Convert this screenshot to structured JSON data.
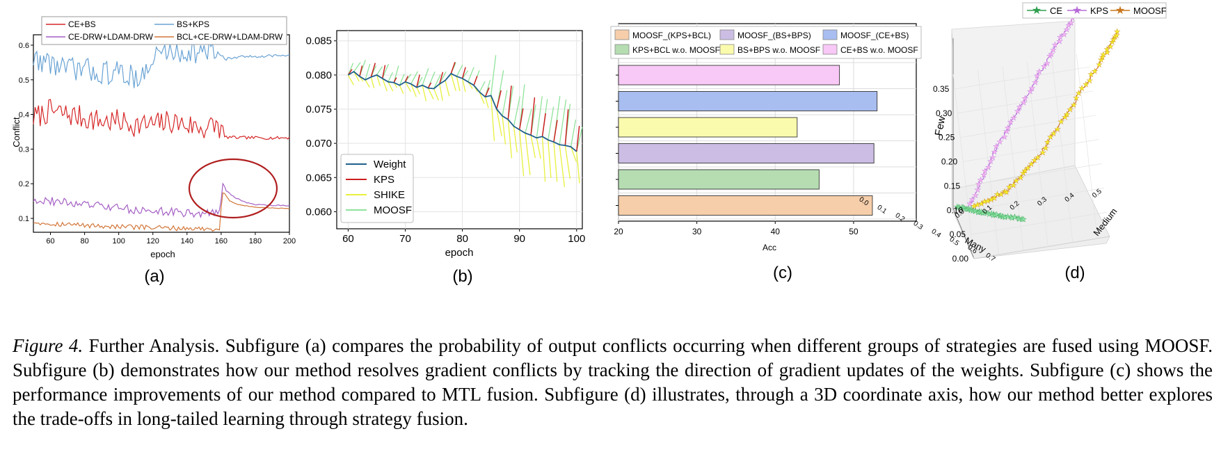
{
  "figure": {
    "caption_label": "Figure 4.",
    "caption_text": "Further Analysis. Subfigure (a) compares the probability of output conflicts occurring when different groups of strategies are fused using MOOSF. Subfigure (b) demonstrates how our method resolves gradient conflicts by tracking the direction of gradient updates of the weights. Subfigure (c) shows the performance improvements of our method compared to MTL fusion. Subfigure (d) illustrates, through a 3D coordinate axis, how our method better explores the trade-offs in long-tailed learning through strategy fusion.",
    "subfigure_labels": [
      "(a)",
      "(b)",
      "(c)",
      "(d)"
    ]
  },
  "chart_data": [
    {
      "id": "a",
      "type": "line",
      "xlabel": "epoch",
      "ylabel": "Conflict",
      "xlim": [
        50,
        200
      ],
      "ylim": [
        0.06,
        0.63
      ],
      "xticks": [
        60,
        80,
        100,
        120,
        140,
        160,
        180,
        200
      ],
      "yticks": [
        0.1,
        0.2,
        0.3,
        0.4,
        0.5,
        0.6
      ],
      "series": [
        {
          "name": "CE+BS",
          "color": "#d62728",
          "x": [
            50,
            60,
            70,
            80,
            90,
            100,
            110,
            120,
            130,
            140,
            150,
            158,
            162,
            170,
            180,
            190,
            200
          ],
          "y": [
            0.39,
            0.41,
            0.4,
            0.39,
            0.38,
            0.38,
            0.37,
            0.37,
            0.38,
            0.37,
            0.36,
            0.37,
            0.335,
            0.333,
            0.333,
            0.332,
            0.333
          ]
        },
        {
          "name": "BS+KPS",
          "color": "#6aa3d4",
          "x": [
            50,
            60,
            70,
            80,
            90,
            100,
            110,
            118,
            122,
            130,
            140,
            150,
            158,
            162,
            170,
            180,
            190,
            200
          ],
          "y": [
            0.56,
            0.55,
            0.53,
            0.53,
            0.52,
            0.52,
            0.51,
            0.52,
            0.58,
            0.58,
            0.58,
            0.58,
            0.58,
            0.56,
            0.565,
            0.568,
            0.57,
            0.57
          ]
        },
        {
          "name": "CE-DRW+LDAM-DRW",
          "color": "#a45fc4",
          "x": [
            50,
            60,
            70,
            80,
            90,
            100,
            110,
            120,
            130,
            140,
            150,
            159,
            161,
            163,
            168,
            175,
            180,
            190,
            200
          ],
          "y": [
            0.155,
            0.15,
            0.145,
            0.14,
            0.135,
            0.13,
            0.125,
            0.12,
            0.12,
            0.115,
            0.115,
            0.115,
            0.205,
            0.18,
            0.16,
            0.145,
            0.14,
            0.138,
            0.137
          ]
        },
        {
          "name": "BCL+CE-DRW+LDAM-DRW",
          "color": "#d2773a",
          "x": [
            50,
            60,
            70,
            80,
            90,
            100,
            110,
            120,
            130,
            140,
            150,
            159,
            161,
            165,
            170,
            180,
            190,
            200
          ],
          "y": [
            0.09,
            0.085,
            0.083,
            0.08,
            0.078,
            0.076,
            0.075,
            0.073,
            0.072,
            0.071,
            0.07,
            0.07,
            0.18,
            0.15,
            0.14,
            0.132,
            0.13,
            0.128
          ]
        }
      ],
      "annotation": "ellipse highlighting epochs 160-200"
    },
    {
      "id": "b",
      "type": "line",
      "xlabel": "epoch",
      "ylabel": "",
      "xlim": [
        58,
        101
      ],
      "ylim": [
        0.0575,
        0.0865
      ],
      "xticks": [
        60,
        70,
        80,
        90,
        100
      ],
      "yticks": [
        0.06,
        0.065,
        0.07,
        0.075,
        0.08,
        0.085
      ],
      "series": [
        {
          "name": "Weight",
          "color": "#1f5f8b",
          "x": [
            60,
            61,
            62,
            63,
            64,
            65,
            66,
            67,
            68,
            69,
            70,
            71,
            72,
            73,
            74,
            75,
            76,
            77,
            78,
            79,
            80,
            81,
            82,
            83,
            84,
            85,
            86,
            87,
            88,
            89,
            90,
            91,
            92,
            93,
            94,
            95,
            96,
            97,
            98,
            99,
            100
          ],
          "y": [
            0.08,
            0.0805,
            0.0798,
            0.0793,
            0.0797,
            0.08,
            0.0795,
            0.079,
            0.0789,
            0.0785,
            0.079,
            0.0787,
            0.0782,
            0.0785,
            0.0781,
            0.078,
            0.0787,
            0.0792,
            0.0802,
            0.0798,
            0.0795,
            0.079,
            0.0785,
            0.0775,
            0.0768,
            0.077,
            0.075,
            0.074,
            0.0735,
            0.0725,
            0.072,
            0.0715,
            0.0712,
            0.0708,
            0.071,
            0.0705,
            0.0702,
            0.0698,
            0.0697,
            0.0695,
            0.0688
          ]
        },
        {
          "name": "KPS",
          "color": "#cc1f1f",
          "x": [],
          "y": []
        },
        {
          "name": "SHIKE",
          "color": "#e8f03c",
          "x": [],
          "y": []
        },
        {
          "name": "MOOSF",
          "color": "#8fe39a",
          "x": [],
          "y": []
        }
      ]
    },
    {
      "id": "c",
      "type": "bar",
      "orientation": "horizontal",
      "xlabel": "Acc",
      "xlim": [
        20,
        58
      ],
      "xticks": [
        20,
        30,
        40,
        50
      ],
      "categories": [
        "CE+BS w.o. MOOSF",
        "MOOSF_(CE+BS)",
        "BS+BPS w.o. MOOSF",
        "MOOSF_(BS+BPS)",
        "KPS+BCL w.o. MOOSF",
        "MOOSF_(KPS+BCL)"
      ],
      "values": [
        48.2,
        53.0,
        42.8,
        52.6,
        45.6,
        52.4
      ],
      "colors": [
        "#f8c8f6",
        "#a8bdf0",
        "#fbfbad",
        "#cbbde3",
        "#b5ddb1",
        "#f6ceaa"
      ],
      "legend": [
        "MOOSF_(KPS+BCL)",
        "MOOSF_(BS+BPS)",
        "MOOSF_(CE+BS)",
        "KPS+BCL w.o. MOOSF",
        "BS+BPS w.o. MOOSF",
        "CE+BS w.o. MOOSF"
      ],
      "legend_colors": [
        "#f6ceaa",
        "#cbbde3",
        "#a8bdf0",
        "#b5ddb1",
        "#fbfbad",
        "#f8c8f6"
      ]
    },
    {
      "id": "d",
      "type": "scatter",
      "projection": "3d",
      "xlabel": "Many",
      "ylabel": "Medium",
      "zlabel": "Few",
      "x_ticks": [
        "0.0",
        "0.1",
        "0.2",
        "0.3",
        "0.4",
        "0.5",
        "0.6",
        "0.7"
      ],
      "y_ticks": [
        "0.0",
        "0.1",
        "0.2",
        "0.3",
        "0.4",
        "0.5"
      ],
      "z_ticks": [
        "0.00",
        "0.05",
        "0.10",
        "0.15",
        "0.20",
        "0.25",
        "0.30",
        "0.35"
      ],
      "series": [
        {
          "name": "CE",
          "color": "#2e9e4e",
          "marker_color": "#8fe3a6",
          "points": [
            [
              0.05,
              0.0,
              0.0
            ],
            [
              0.2,
              0.02,
              0.0
            ],
            [
              0.35,
              0.05,
              0.0
            ],
            [
              0.5,
              0.08,
              0.0
            ],
            [
              0.65,
              0.12,
              0.0
            ]
          ]
        },
        {
          "name": "KPS",
          "color": "#b56ad8",
          "marker_color": "#f2b3f0",
          "points": [
            [
              0.05,
              0.05,
              0.0
            ],
            [
              0.1,
              0.12,
              0.1
            ],
            [
              0.15,
              0.22,
              0.2
            ],
            [
              0.2,
              0.32,
              0.3
            ],
            [
              0.25,
              0.4,
              0.38
            ]
          ]
        },
        {
          "name": "MOOSF",
          "color": "#c8761e",
          "marker_color": "#f3ef2a",
          "points": [
            [
              0.1,
              0.05,
              0.0
            ],
            [
              0.2,
              0.15,
              0.03
            ],
            [
              0.3,
              0.25,
              0.1
            ],
            [
              0.4,
              0.35,
              0.2
            ],
            [
              0.5,
              0.45,
              0.3
            ],
            [
              0.55,
              0.5,
              0.36
            ]
          ]
        }
      ]
    }
  ]
}
